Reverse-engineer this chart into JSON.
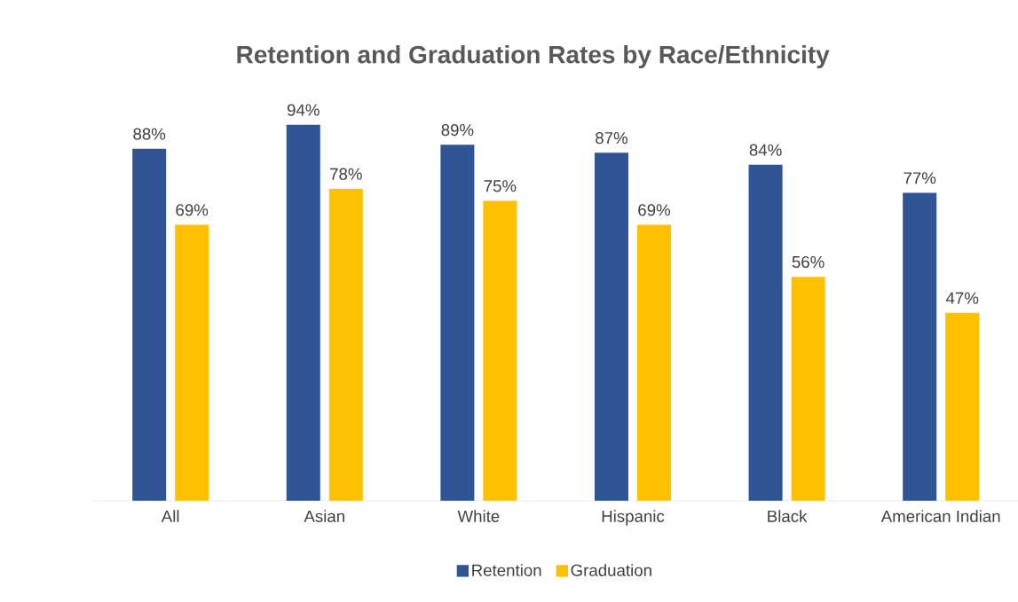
{
  "chart_data": {
    "type": "bar",
    "title": "Retention and Graduation Rates by Race/Ethnicity",
    "categories": [
      "All",
      "Asian",
      "White",
      "Hispanic",
      "Black",
      "American Indian"
    ],
    "series": [
      {
        "name": "Retention",
        "color": "#2f5597",
        "values": [
          88,
          94,
          89,
          87,
          84,
          77
        ],
        "value_labels": [
          "88%",
          "94%",
          "89%",
          "87%",
          "84%",
          "77%"
        ]
      },
      {
        "name": "Graduation",
        "color": "#ffc000",
        "values": [
          69,
          78,
          75,
          69,
          56,
          47
        ],
        "value_labels": [
          "69%",
          "78%",
          "75%",
          "69%",
          "56%",
          "47%"
        ]
      }
    ],
    "legend": "bottom"
  }
}
